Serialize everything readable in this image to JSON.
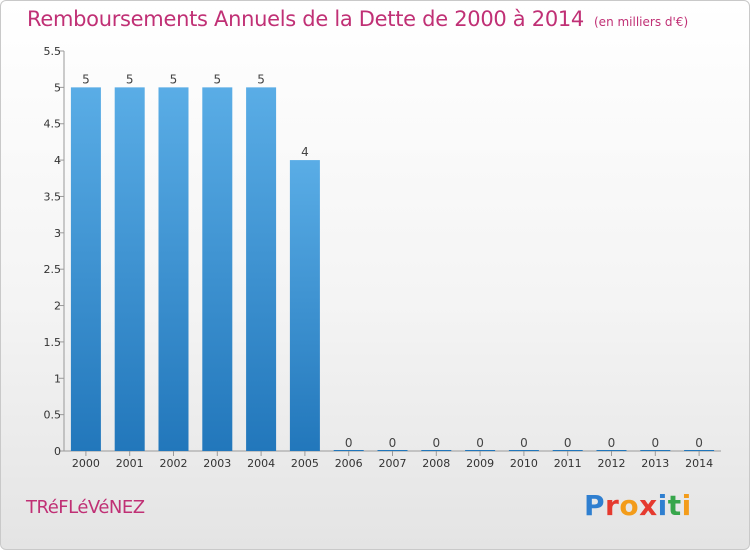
{
  "header": {
    "title": "Remboursements Annuels de la Dette de 2000 à 2014",
    "unit_note": "(en milliers d'€)"
  },
  "footer": {
    "commune": "TRéFLéVéNEZ",
    "logo_text": "Proxiti"
  },
  "colors": {
    "title": "#c03075",
    "bar_top": "#5aade6",
    "bar_bottom": "#2277bb",
    "axis": "#999999",
    "logo": [
      "#2f7fd0",
      "#e53a2f",
      "#f39c1a",
      "#e53a2f",
      "#2f7fd0",
      "#37a64b",
      "#f39c1a"
    ]
  },
  "chart_data": {
    "type": "bar",
    "title": "Remboursements Annuels de la Dette de 2000 à 2014",
    "subtitle": "(en milliers d'€)",
    "categories": [
      "2000",
      "2001",
      "2002",
      "2003",
      "2004",
      "2005",
      "2006",
      "2007",
      "2008",
      "2009",
      "2010",
      "2011",
      "2012",
      "2013",
      "2014"
    ],
    "values": [
      5,
      5,
      5,
      5,
      5,
      4,
      0,
      0,
      0,
      0,
      0,
      0,
      0,
      0,
      0
    ],
    "data_labels": [
      "5",
      "5",
      "5",
      "5",
      "5",
      "4",
      "0",
      "0",
      "0",
      "0",
      "0",
      "0",
      "0",
      "0",
      "0"
    ],
    "y_ticks": [
      "0",
      "0.5",
      "1",
      "1.5",
      "2",
      "2.5",
      "3",
      "3.5",
      "4",
      "4.5",
      "5",
      "5.5"
    ],
    "ylim": [
      0,
      5.5
    ],
    "xlabel": "",
    "ylabel": "",
    "grid": false,
    "legend": "none"
  }
}
